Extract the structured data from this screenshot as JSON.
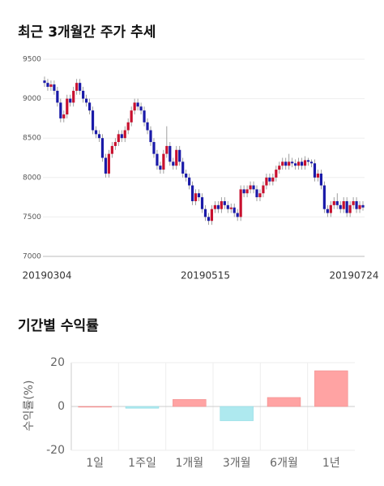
{
  "chart_data": [
    {
      "type": "candlestick",
      "title": "최근 3개월간 주가 추세",
      "categories": [
        "20190304",
        null,
        null,
        null,
        null,
        null,
        null,
        null,
        null,
        null,
        null,
        null,
        null,
        null,
        null,
        null,
        null,
        null,
        null,
        null,
        null,
        null,
        null,
        null,
        null,
        null,
        null,
        null,
        null,
        null,
        null,
        null,
        null,
        null,
        null,
        null,
        null,
        null,
        null,
        null,
        null,
        null,
        null,
        null,
        null,
        null,
        null,
        null,
        null,
        null,
        "20190515",
        null,
        null,
        null,
        null,
        null,
        null,
        null,
        null,
        null,
        null,
        null,
        null,
        null,
        null,
        null,
        null,
        null,
        null,
        null,
        null,
        null,
        null,
        null,
        null,
        null,
        null,
        null,
        null,
        null,
        null,
        null,
        null,
        null,
        null,
        null,
        null,
        null,
        null,
        null,
        null,
        null,
        null,
        null,
        null,
        null,
        null,
        null,
        null,
        "20190724"
      ],
      "candles": [
        [
          9230,
          9280,
          9150,
          9200
        ],
        [
          9200,
          9250,
          9100,
          9150
        ],
        [
          9150,
          9230,
          9100,
          9180
        ],
        [
          9180,
          9230,
          9050,
          9100
        ],
        [
          9100,
          9150,
          8900,
          8950
        ],
        [
          8950,
          9000,
          8700,
          8750
        ],
        [
          8750,
          8850,
          8700,
          8800
        ],
        [
          8800,
          9050,
          8750,
          9000
        ],
        [
          9000,
          9050,
          8900,
          8950
        ],
        [
          8950,
          9150,
          8900,
          9100
        ],
        [
          9100,
          9250,
          9050,
          9200
        ],
        [
          9200,
          9250,
          9050,
          9100
        ],
        [
          9100,
          9150,
          8950,
          9000
        ],
        [
          9000,
          9050,
          8900,
          8950
        ],
        [
          8950,
          9000,
          8800,
          8850
        ],
        [
          8850,
          8900,
          8550,
          8600
        ],
        [
          8600,
          8650,
          8500,
          8550
        ],
        [
          8550,
          8600,
          8450,
          8500
        ],
        [
          8500,
          8550,
          8200,
          8250
        ],
        [
          8250,
          8300,
          8000,
          8050
        ],
        [
          8050,
          8350,
          8000,
          8300
        ],
        [
          8300,
          8450,
          8250,
          8400
        ],
        [
          8400,
          8500,
          8350,
          8450
        ],
        [
          8450,
          8600,
          8400,
          8550
        ],
        [
          8550,
          8600,
          8450,
          8500
        ],
        [
          8500,
          8650,
          8450,
          8600
        ],
        [
          8600,
          8750,
          8550,
          8700
        ],
        [
          8700,
          8900,
          8650,
          8850
        ],
        [
          8850,
          9000,
          8800,
          8950
        ],
        [
          8950,
          9000,
          8850,
          8900
        ],
        [
          8900,
          8950,
          8800,
          8850
        ],
        [
          8850,
          8900,
          8650,
          8700
        ],
        [
          8700,
          8750,
          8550,
          8600
        ],
        [
          8600,
          8650,
          8400,
          8450
        ],
        [
          8450,
          8500,
          8250,
          8300
        ],
        [
          8300,
          8350,
          8100,
          8150
        ],
        [
          8150,
          8200,
          8050,
          8100
        ],
        [
          8100,
          8350,
          8050,
          8300
        ],
        [
          8300,
          8650,
          8250,
          8400
        ],
        [
          8400,
          8450,
          8150,
          8200
        ],
        [
          8200,
          8250,
          8100,
          8150
        ],
        [
          8150,
          8400,
          8100,
          8350
        ],
        [
          8350,
          8400,
          8150,
          8200
        ],
        [
          8200,
          8250,
          8000,
          8050
        ],
        [
          8050,
          8100,
          7950,
          8000
        ],
        [
          8000,
          8050,
          7850,
          7900
        ],
        [
          7900,
          7950,
          7650,
          7700
        ],
        [
          7700,
          7850,
          7650,
          7800
        ],
        [
          7800,
          7850,
          7700,
          7750
        ],
        [
          7750,
          7800,
          7550,
          7600
        ],
        [
          7600,
          7650,
          7450,
          7500
        ],
        [
          7500,
          7550,
          7400,
          7450
        ],
        [
          7450,
          7650,
          7400,
          7600
        ],
        [
          7600,
          7700,
          7550,
          7650
        ],
        [
          7650,
          7700,
          7550,
          7600
        ],
        [
          7600,
          7750,
          7550,
          7700
        ],
        [
          7700,
          7750,
          7600,
          7650
        ],
        [
          7650,
          7700,
          7550,
          7600
        ],
        [
          7600,
          7670,
          7550,
          7620
        ],
        [
          7620,
          7670,
          7500,
          7550
        ],
        [
          7550,
          7600,
          7450,
          7500
        ],
        [
          7500,
          7900,
          7450,
          7850
        ],
        [
          7850,
          7900,
          7750,
          7800
        ],
        [
          7800,
          7900,
          7750,
          7850
        ],
        [
          7850,
          7950,
          7800,
          7900
        ],
        [
          7900,
          7950,
          7800,
          7850
        ],
        [
          7850,
          7900,
          7700,
          7750
        ],
        [
          7750,
          7850,
          7700,
          7800
        ],
        [
          7800,
          7950,
          7750,
          7900
        ],
        [
          7900,
          8050,
          7850,
          8000
        ],
        [
          8000,
          8050,
          7900,
          7950
        ],
        [
          7950,
          8050,
          7900,
          8000
        ],
        [
          8000,
          8150,
          7950,
          8100
        ],
        [
          8100,
          8200,
          8050,
          8150
        ],
        [
          8150,
          8250,
          8100,
          8200
        ],
        [
          8200,
          8250,
          8100,
          8150
        ],
        [
          8150,
          8300,
          8100,
          8200
        ],
        [
          8200,
          8250,
          8130,
          8180
        ],
        [
          8180,
          8230,
          8100,
          8150
        ],
        [
          8150,
          8250,
          8100,
          8200
        ],
        [
          8200,
          8250,
          8100,
          8150
        ],
        [
          8150,
          8270,
          8100,
          8220
        ],
        [
          8220,
          8250,
          8150,
          8200
        ],
        [
          8200,
          8230,
          8130,
          8180
        ],
        [
          8180,
          8230,
          7950,
          8000
        ],
        [
          8000,
          8100,
          7950,
          8050
        ],
        [
          8050,
          8100,
          7850,
          7900
        ],
        [
          7900,
          7950,
          7550,
          7600
        ],
        [
          7600,
          7650,
          7500,
          7550
        ],
        [
          7550,
          7700,
          7500,
          7650
        ],
        [
          7650,
          7750,
          7600,
          7700
        ],
        [
          7700,
          7800,
          7600,
          7650
        ],
        [
          7650,
          7700,
          7550,
          7600
        ],
        [
          7600,
          7750,
          7550,
          7700
        ],
        [
          7700,
          7750,
          7500,
          7550
        ],
        [
          7550,
          7700,
          7500,
          7650
        ],
        [
          7650,
          7750,
          7600,
          7700
        ],
        [
          7700,
          7750,
          7550,
          7600
        ],
        [
          7600,
          7700,
          7550,
          7650
        ],
        [
          7650,
          7700,
          7580,
          7620
        ]
      ],
      "up_color": "#c8102e",
      "down_color": "#1a1aa8",
      "ylim": [
        7000,
        9500
      ],
      "yticks": [
        7000,
        7500,
        8000,
        8500,
        9000,
        9500
      ],
      "grid": true
    },
    {
      "type": "bar",
      "title": "기간별 수익률",
      "y_label": "수익률(%)",
      "categories": [
        "1일",
        "1주일",
        "1개월",
        "3개월",
        "6개월",
        "1년"
      ],
      "values": [
        0,
        -0.8,
        3.2,
        -6.5,
        4.1,
        16.3
      ],
      "positive_color": "#ffa3a3",
      "negative_color": "#aee9ef",
      "ylim": [
        -20,
        20
      ],
      "yticks": [
        -20,
        0,
        20
      ],
      "grid": true
    }
  ]
}
